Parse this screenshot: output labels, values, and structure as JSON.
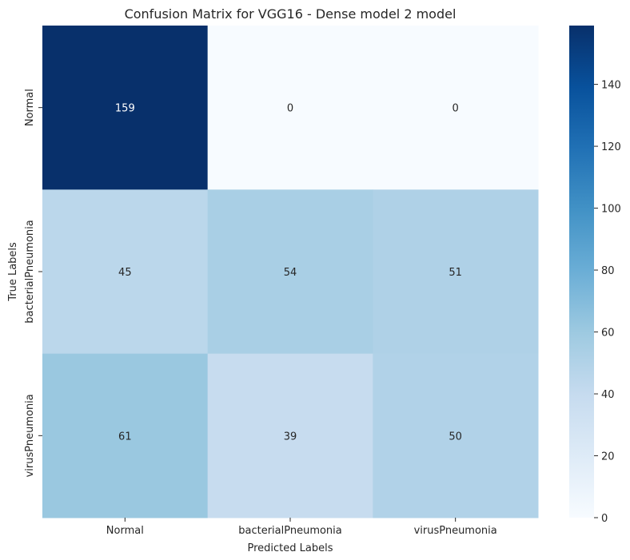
{
  "chart_data": {
    "type": "heatmap",
    "title": "Confusion Matrix for VGG16 - Dense model 2 model",
    "xlabel": "Predicted Labels",
    "ylabel": "True Labels",
    "x_categories": [
      "Normal",
      "bacterialPneumonia",
      "virusPneumonia"
    ],
    "y_categories": [
      "Normal",
      "bacterialPneumonia",
      "virusPneumonia"
    ],
    "values": [
      [
        159,
        0,
        0
      ],
      [
        45,
        54,
        51
      ],
      [
        61,
        39,
        50
      ]
    ],
    "colormap": "Blues",
    "color_range": [
      0,
      159
    ],
    "colorbar_ticks": [
      0,
      20,
      40,
      60,
      80,
      100,
      120,
      140
    ],
    "annotated": true,
    "grid": false,
    "colorbar_position": "right"
  }
}
